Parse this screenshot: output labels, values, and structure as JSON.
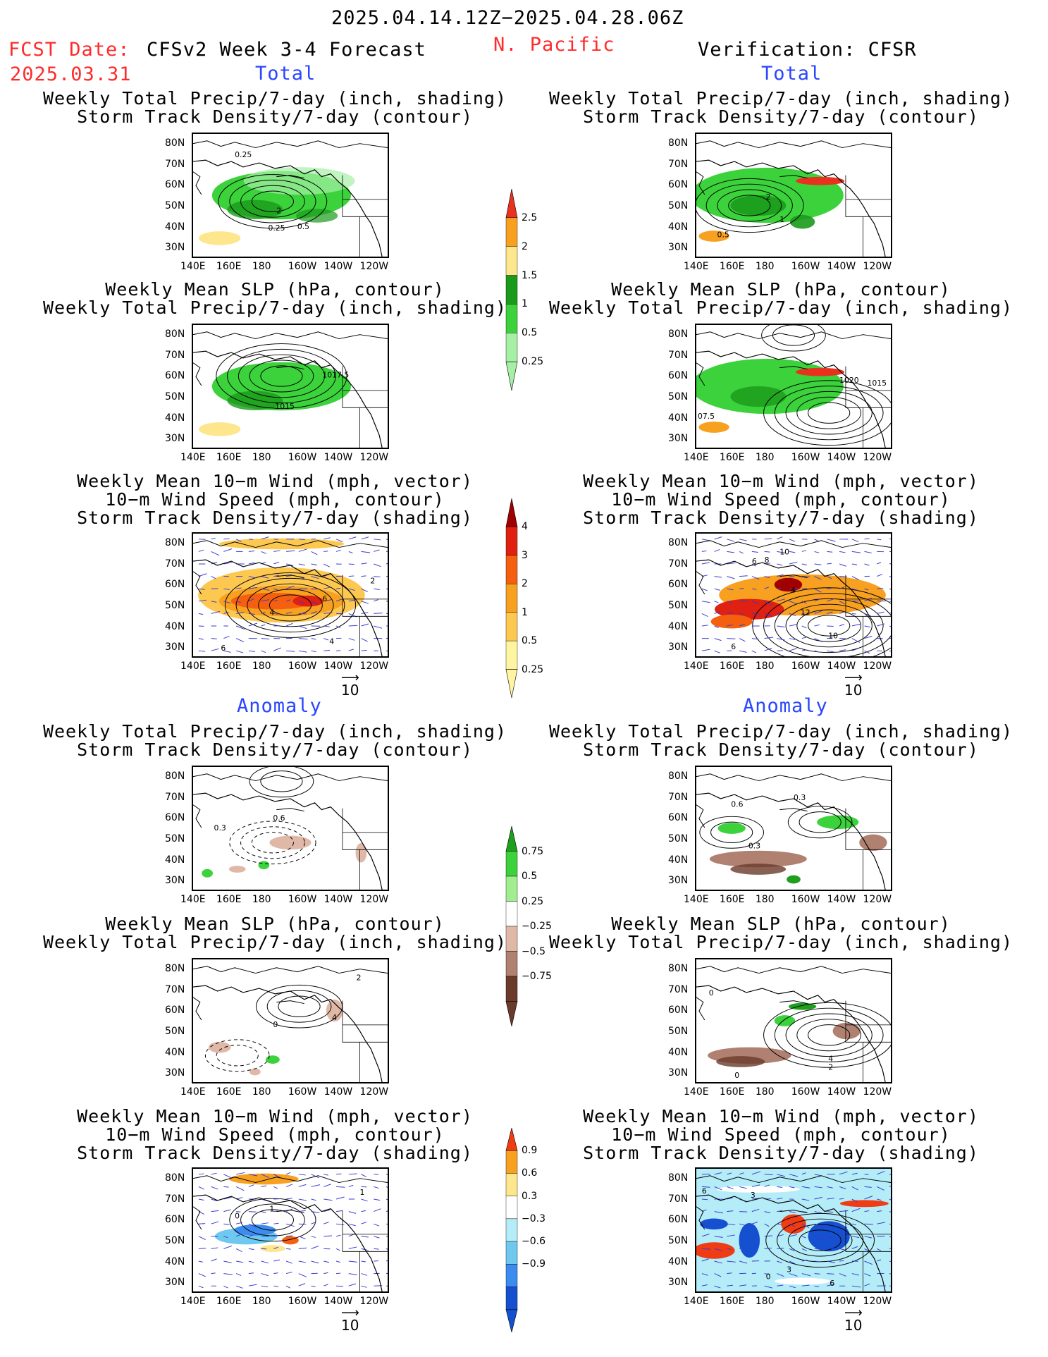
{
  "header": {
    "date_range": "2025.04.14.12Z−2025.04.28.06Z",
    "fcst_label": "FCST Date:",
    "fcst_date": "2025.03.31",
    "forecast_title": "CFSv2 Week 3-4 Forecast",
    "region": "N. Pacific",
    "verification": "Verification: CFSR"
  },
  "sections": {
    "total": "Total",
    "anomaly": "Anomaly"
  },
  "axes": {
    "lat_labels": [
      "80N",
      "70N",
      "60N",
      "50N",
      "40N",
      "30N"
    ],
    "lon_labels": [
      "140E",
      "160E",
      "180",
      "160W",
      "140W",
      "120W"
    ]
  },
  "panel_titles": {
    "precip_storm": [
      "Weekly Total Precip/7-day (inch, shading)",
      "Storm Track Density/7-day (contour)"
    ],
    "slp_precip": [
      "Weekly Mean SLP (hPa, contour)",
      "Weekly Total Precip/7-day (inch, shading)"
    ],
    "wind_storm": [
      "Weekly Mean 10−m Wind (mph, vector)",
      "10−m Wind Speed (mph, contour)",
      "Storm Track Density/7-day (shading)"
    ]
  },
  "ref_vector": "10",
  "colorbars": {
    "precip_total": {
      "labels": [
        "2.5",
        "2",
        "1.5",
        "1",
        "0.5",
        "0.25"
      ],
      "colors": [
        "#e8321e",
        "#f8a020",
        "#fde68c",
        "#1a9a1a",
        "#3cd23c",
        "#a5f0a5"
      ]
    },
    "storm_total": {
      "labels": [
        "4",
        "3",
        "2",
        "1",
        "0.5",
        "0.25"
      ],
      "colors": [
        "#a00000",
        "#e02010",
        "#f56010",
        "#f8a020",
        "#fdc850",
        "#fff5a0"
      ]
    },
    "precip_anom": {
      "labels": [
        "0.75",
        "0.5",
        "0.25",
        "−0.25",
        "−0.5",
        "−0.75"
      ],
      "colors": [
        "#1ea01e",
        "#3cd23c",
        "#a0ee90",
        "#ffffff",
        "#e0b8a8",
        "#b08070",
        "#6a3a2a"
      ]
    },
    "storm_anom": {
      "labels": [
        "0.9",
        "0.6",
        "0.3",
        "−0.3",
        "−0.6",
        "−0.9"
      ],
      "colors": [
        "#f03c14",
        "#f8a020",
        "#fde68c",
        "#ffffff",
        "#b4ecf8",
        "#6ec8f0",
        "#3c8cf0",
        "#1450d0"
      ]
    }
  },
  "contour_labels": {
    "m_total_p1": [
      "0.25",
      "2",
      "0.25",
      "0.5"
    ],
    "v_total_p1": [
      "2",
      "1",
      "0.5"
    ],
    "m_total_p2": [
      "1017.5",
      "1015"
    ],
    "v_total_p2": [
      "1020",
      "1015",
      "07.5"
    ],
    "m_total_p3": [
      "6",
      "4",
      "2",
      "4",
      "6"
    ],
    "v_total_p3": [
      "10",
      "6",
      "8",
      "4",
      "12",
      "10",
      "6"
    ],
    "m_anom_p1": [
      "0.3",
      "0.6"
    ],
    "v_anom_p1": [
      "0.6",
      "0.3",
      "0.3"
    ],
    "m_anom_p2": [
      "2",
      "4",
      "0"
    ],
    "v_anom_p2": [
      "0",
      "4",
      "2",
      "0"
    ],
    "m_anom_p3": [
      "0",
      "1",
      "1"
    ],
    "v_anom_p3": [
      "6",
      "3",
      "0",
      "3",
      "6"
    ]
  },
  "map_colors": {
    "coast": "#000000",
    "vector": "#3a3ad0",
    "ocean": "#ffffff"
  }
}
